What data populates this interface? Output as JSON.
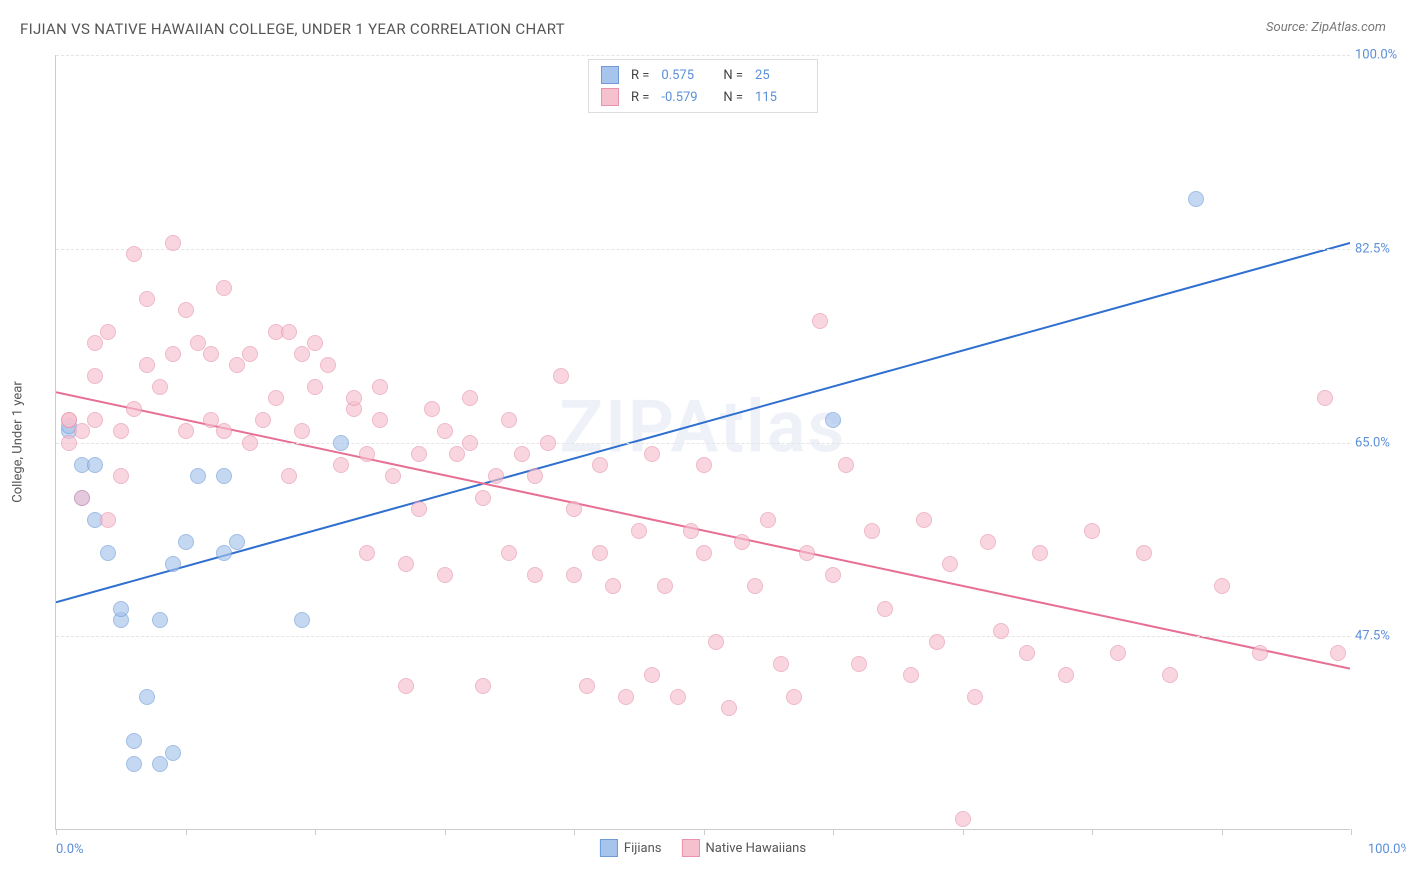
{
  "header": {
    "title": "FIJIAN VS NATIVE HAWAIIAN COLLEGE, UNDER 1 YEAR CORRELATION CHART",
    "source": "Source: ZipAtlas.com"
  },
  "watermark": "ZIPAtlas",
  "chart": {
    "type": "scatter",
    "y_axis_title": "College, Under 1 year",
    "background_color": "#ffffff",
    "grid_color": "#e5e5e5",
    "axis_color": "#cccccc",
    "tick_label_color": "#5b8fd9",
    "tick_fontsize": 13,
    "xlim": [
      0,
      100
    ],
    "ylim": [
      30,
      100
    ],
    "x_tick_percents": [
      0,
      10,
      20,
      30,
      40,
      50,
      60,
      70,
      80,
      90,
      100
    ],
    "x_label_min": "0.0%",
    "x_label_max": "100.0%",
    "y_gridlines": [
      {
        "pct": 47.5,
        "label": "47.5%"
      },
      {
        "pct": 65.0,
        "label": "65.0%"
      },
      {
        "pct": 82.5,
        "label": "82.5%"
      },
      {
        "pct": 100.0,
        "label": "100.0%"
      }
    ],
    "point_radius": 8,
    "point_opacity": 0.65,
    "series": [
      {
        "name": "Fijians",
        "fill_color": "#a7c4ec",
        "stroke_color": "#6f9bd8",
        "trend_color": "#2f6fd0",
        "trend_width": 2,
        "R": "0.575",
        "N": "25",
        "trendline": {
          "x1": 0,
          "y1": 50.5,
          "x2": 100,
          "y2": 83.0
        },
        "points": [
          {
            "x": 1,
            "y": 66
          },
          {
            "x": 1,
            "y": 66.5
          },
          {
            "x": 2,
            "y": 63
          },
          {
            "x": 2,
            "y": 60
          },
          {
            "x": 3,
            "y": 58
          },
          {
            "x": 3,
            "y": 63
          },
          {
            "x": 4,
            "y": 55
          },
          {
            "x": 5,
            "y": 49
          },
          {
            "x": 5,
            "y": 50
          },
          {
            "x": 6,
            "y": 38
          },
          {
            "x": 6,
            "y": 36
          },
          {
            "x": 7,
            "y": 42
          },
          {
            "x": 8,
            "y": 49
          },
          {
            "x": 8,
            "y": 36
          },
          {
            "x": 9,
            "y": 37
          },
          {
            "x": 9,
            "y": 54
          },
          {
            "x": 10,
            "y": 56
          },
          {
            "x": 11,
            "y": 62
          },
          {
            "x": 13,
            "y": 55
          },
          {
            "x": 13,
            "y": 62
          },
          {
            "x": 14,
            "y": 56
          },
          {
            "x": 19,
            "y": 49
          },
          {
            "x": 22,
            "y": 65
          },
          {
            "x": 60,
            "y": 67
          },
          {
            "x": 88,
            "y": 87
          }
        ]
      },
      {
        "name": "Native Hawaiians",
        "fill_color": "#f6c1cf",
        "stroke_color": "#e893ab",
        "trend_color": "#e76f93",
        "trend_width": 2,
        "R": "-0.579",
        "N": "115",
        "trendline": {
          "x1": 0,
          "y1": 69.5,
          "x2": 100,
          "y2": 44.5
        },
        "points": [
          {
            "x": 1,
            "y": 67
          },
          {
            "x": 1,
            "y": 65
          },
          {
            "x": 1,
            "y": 67
          },
          {
            "x": 2,
            "y": 66
          },
          {
            "x": 2,
            "y": 60
          },
          {
            "x": 3,
            "y": 67
          },
          {
            "x": 3,
            "y": 74
          },
          {
            "x": 3,
            "y": 71
          },
          {
            "x": 4,
            "y": 58
          },
          {
            "x": 4,
            "y": 75
          },
          {
            "x": 5,
            "y": 66
          },
          {
            "x": 5,
            "y": 62
          },
          {
            "x": 6,
            "y": 68
          },
          {
            "x": 6,
            "y": 82
          },
          {
            "x": 7,
            "y": 78
          },
          {
            "x": 7,
            "y": 72
          },
          {
            "x": 8,
            "y": 70
          },
          {
            "x": 9,
            "y": 83
          },
          {
            "x": 9,
            "y": 73
          },
          {
            "x": 10,
            "y": 66
          },
          {
            "x": 10,
            "y": 77
          },
          {
            "x": 11,
            "y": 74
          },
          {
            "x": 12,
            "y": 67
          },
          {
            "x": 12,
            "y": 73
          },
          {
            "x": 13,
            "y": 79
          },
          {
            "x": 13,
            "y": 66
          },
          {
            "x": 14,
            "y": 72
          },
          {
            "x": 15,
            "y": 73
          },
          {
            "x": 15,
            "y": 65
          },
          {
            "x": 16,
            "y": 67
          },
          {
            "x": 17,
            "y": 69
          },
          {
            "x": 17,
            "y": 75
          },
          {
            "x": 18,
            "y": 75
          },
          {
            "x": 18,
            "y": 62
          },
          {
            "x": 19,
            "y": 73
          },
          {
            "x": 19,
            "y": 66
          },
          {
            "x": 20,
            "y": 70
          },
          {
            "x": 20,
            "y": 74
          },
          {
            "x": 21,
            "y": 72
          },
          {
            "x": 22,
            "y": 63
          },
          {
            "x": 23,
            "y": 68
          },
          {
            "x": 23,
            "y": 69
          },
          {
            "x": 24,
            "y": 64
          },
          {
            "x": 24,
            "y": 55
          },
          {
            "x": 25,
            "y": 67
          },
          {
            "x": 25,
            "y": 70
          },
          {
            "x": 26,
            "y": 62
          },
          {
            "x": 27,
            "y": 43
          },
          {
            "x": 27,
            "y": 54
          },
          {
            "x": 28,
            "y": 64
          },
          {
            "x": 28,
            "y": 59
          },
          {
            "x": 29,
            "y": 68
          },
          {
            "x": 30,
            "y": 66
          },
          {
            "x": 30,
            "y": 53
          },
          {
            "x": 31,
            "y": 64
          },
          {
            "x": 32,
            "y": 69
          },
          {
            "x": 32,
            "y": 65
          },
          {
            "x": 33,
            "y": 43
          },
          {
            "x": 33,
            "y": 60
          },
          {
            "x": 34,
            "y": 62
          },
          {
            "x": 35,
            "y": 67
          },
          {
            "x": 35,
            "y": 55
          },
          {
            "x": 36,
            "y": 64
          },
          {
            "x": 37,
            "y": 53
          },
          {
            "x": 37,
            "y": 62
          },
          {
            "x": 38,
            "y": 65
          },
          {
            "x": 39,
            "y": 71
          },
          {
            "x": 40,
            "y": 59
          },
          {
            "x": 40,
            "y": 53
          },
          {
            "x": 41,
            "y": 43
          },
          {
            "x": 42,
            "y": 55
          },
          {
            "x": 42,
            "y": 63
          },
          {
            "x": 43,
            "y": 52
          },
          {
            "x": 44,
            "y": 42
          },
          {
            "x": 45,
            "y": 57
          },
          {
            "x": 46,
            "y": 64
          },
          {
            "x": 46,
            "y": 44
          },
          {
            "x": 47,
            "y": 52
          },
          {
            "x": 48,
            "y": 42
          },
          {
            "x": 49,
            "y": 57
          },
          {
            "x": 50,
            "y": 55
          },
          {
            "x": 50,
            "y": 63
          },
          {
            "x": 51,
            "y": 47
          },
          {
            "x": 52,
            "y": 41
          },
          {
            "x": 53,
            "y": 56
          },
          {
            "x": 54,
            "y": 52
          },
          {
            "x": 55,
            "y": 58
          },
          {
            "x": 56,
            "y": 45
          },
          {
            "x": 57,
            "y": 42
          },
          {
            "x": 58,
            "y": 55
          },
          {
            "x": 59,
            "y": 76
          },
          {
            "x": 60,
            "y": 53
          },
          {
            "x": 61,
            "y": 63
          },
          {
            "x": 62,
            "y": 45
          },
          {
            "x": 63,
            "y": 57
          },
          {
            "x": 64,
            "y": 50
          },
          {
            "x": 66,
            "y": 44
          },
          {
            "x": 67,
            "y": 58
          },
          {
            "x": 68,
            "y": 47
          },
          {
            "x": 69,
            "y": 54
          },
          {
            "x": 70,
            "y": 31
          },
          {
            "x": 71,
            "y": 42
          },
          {
            "x": 72,
            "y": 56
          },
          {
            "x": 73,
            "y": 48
          },
          {
            "x": 75,
            "y": 46
          },
          {
            "x": 76,
            "y": 55
          },
          {
            "x": 78,
            "y": 44
          },
          {
            "x": 80,
            "y": 57
          },
          {
            "x": 82,
            "y": 46
          },
          {
            "x": 84,
            "y": 55
          },
          {
            "x": 86,
            "y": 44
          },
          {
            "x": 90,
            "y": 52
          },
          {
            "x": 93,
            "y": 46
          },
          {
            "x": 98,
            "y": 69
          },
          {
            "x": 99,
            "y": 46
          }
        ]
      }
    ]
  },
  "legend_top": {
    "rows": [
      {
        "swatch_fill": "#a7c4ec",
        "swatch_stroke": "#6f9bd8",
        "r_label": "R =",
        "r_val": "0.575",
        "n_label": "N =",
        "n_val": "25"
      },
      {
        "swatch_fill": "#f6c1cf",
        "swatch_stroke": "#e893ab",
        "r_label": "R =",
        "r_val": "-0.579",
        "n_label": "N =",
        "n_val": "115"
      }
    ]
  },
  "legend_bottom": {
    "items": [
      {
        "swatch_fill": "#a7c4ec",
        "swatch_stroke": "#6f9bd8",
        "label": "Fijians"
      },
      {
        "swatch_fill": "#f6c1cf",
        "swatch_stroke": "#e893ab",
        "label": "Native Hawaiians"
      }
    ]
  }
}
